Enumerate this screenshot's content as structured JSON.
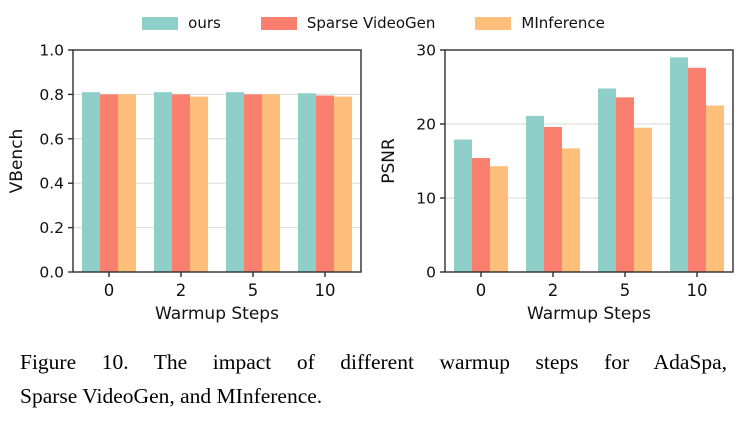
{
  "legend": {
    "items": [
      {
        "label": "ours",
        "color": "#8ECFC9"
      },
      {
        "label": "Sparse VideoGen",
        "color": "#FA7F6F"
      },
      {
        "label": "MInference",
        "color": "#FFBE7A"
      }
    ]
  },
  "caption": {
    "line1": "Figure 10.  The impact of different warmup steps for AdaSpa,",
    "line2": "Sparse VideoGen, and MInference."
  },
  "chart_data": [
    {
      "type": "bar",
      "title": "",
      "categories": [
        "0",
        "2",
        "5",
        "10"
      ],
      "xlabel": "Warmup Steps",
      "ylabel": "VBench",
      "ylim": [
        0,
        1.0
      ],
      "yticks": [
        0,
        0.2,
        0.4,
        0.6,
        0.8,
        1.0
      ],
      "ytick_labels": [
        "0.0",
        "0.2",
        "0.4",
        "0.6",
        "0.8",
        "1.0"
      ],
      "grid": true,
      "legend_position": "figure-top",
      "series": [
        {
          "name": "ours",
          "color": "#8ECFC9",
          "values": [
            0.81,
            0.81,
            0.81,
            0.805
          ]
        },
        {
          "name": "Sparse VideoGen",
          "color": "#FA7F6F",
          "values": [
            0.8,
            0.8,
            0.8,
            0.795
          ]
        },
        {
          "name": "MInference",
          "color": "#FFBE7A",
          "values": [
            0.8,
            0.79,
            0.8,
            0.79
          ]
        }
      ]
    },
    {
      "type": "bar",
      "title": "",
      "categories": [
        "0",
        "2",
        "5",
        "10"
      ],
      "xlabel": "Warmup Steps",
      "ylabel": "PSNR",
      "ylim": [
        0,
        30
      ],
      "yticks": [
        0,
        10,
        20,
        30
      ],
      "ytick_labels": [
        "0",
        "10",
        "20",
        "30"
      ],
      "grid": true,
      "legend_position": "figure-top",
      "series": [
        {
          "name": "ours",
          "color": "#8ECFC9",
          "values": [
            17.9,
            21.1,
            24.8,
            29.0
          ]
        },
        {
          "name": "Sparse VideoGen",
          "color": "#FA7F6F",
          "values": [
            15.4,
            19.6,
            23.6,
            27.6
          ]
        },
        {
          "name": "MInference",
          "color": "#FFBE7A",
          "values": [
            14.3,
            16.7,
            19.5,
            22.5
          ]
        }
      ]
    }
  ]
}
